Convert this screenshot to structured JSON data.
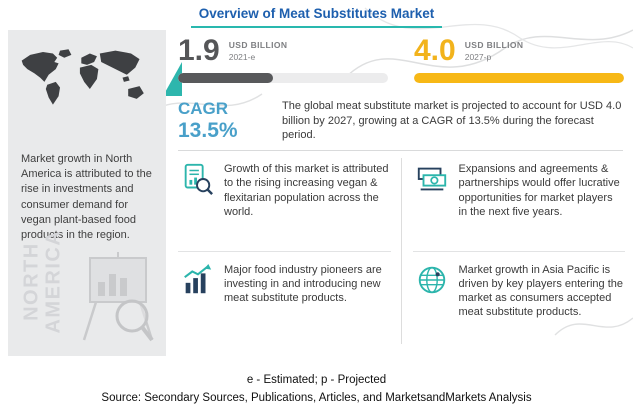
{
  "title": "Overview of Meat Substitutes Market",
  "colors": {
    "title_blue": "#1d5fae",
    "teal_accent": "#29b8ae",
    "gold": "#f2b31c",
    "dark_gray": "#58595b",
    "cagr_blue": "#49a0c9"
  },
  "sidebar": {
    "text": "Market growth in North America is attributed to the rise in investments and consumer demand for vegan plant-based food products in the region.",
    "region_line1": "NORTH",
    "region_line2": "AMERICA"
  },
  "stats": [
    {
      "value": "1.9",
      "unit": "USD BILLION",
      "period": "2021-e",
      "fill_pct": 45
    },
    {
      "value": "4.0",
      "unit": "USD BILLION",
      "period": "2027-p",
      "fill_pct": 100
    }
  ],
  "cagr": {
    "label": "CAGR",
    "value": "13.5%"
  },
  "summary": "The global meat substitute market is projected to account for USD 4.0 billion  by 2027, growing at a CAGR of 13.5% during the forecast period.",
  "insights": [
    {
      "icon": "report-magnifier-icon",
      "text": "Growth of this market is attributed to the rising increasing vegan & flexitarian population across the world."
    },
    {
      "icon": "banknotes-icon",
      "text": "Expansions and agreements & partnerships would offer lucrative opportunities for market players in the next five years."
    },
    {
      "icon": "growth-chart-icon",
      "text": "Major food industry pioneers are investing in and introducing new meat substitute products."
    },
    {
      "icon": "globe-icon",
      "text": "Market growth in Asia Pacific is driven by key players entering the market as consumers accepted meat substitute products."
    }
  ],
  "footer": {
    "note": "e - Estimated; p - Projected",
    "source": "Source: Secondary Sources, Publications, Articles, and MarketsandMarkets Analysis"
  },
  "chart_data": {
    "type": "bar",
    "title": "Overview of Meat Substitutes Market (USD Billion)",
    "categories": [
      "2021-e",
      "2027-p"
    ],
    "values": [
      1.9,
      4.0
    ],
    "cagr_percent": 13.5,
    "ylim": [
      0,
      4.0
    ],
    "legend_position": "none",
    "grid": false
  }
}
